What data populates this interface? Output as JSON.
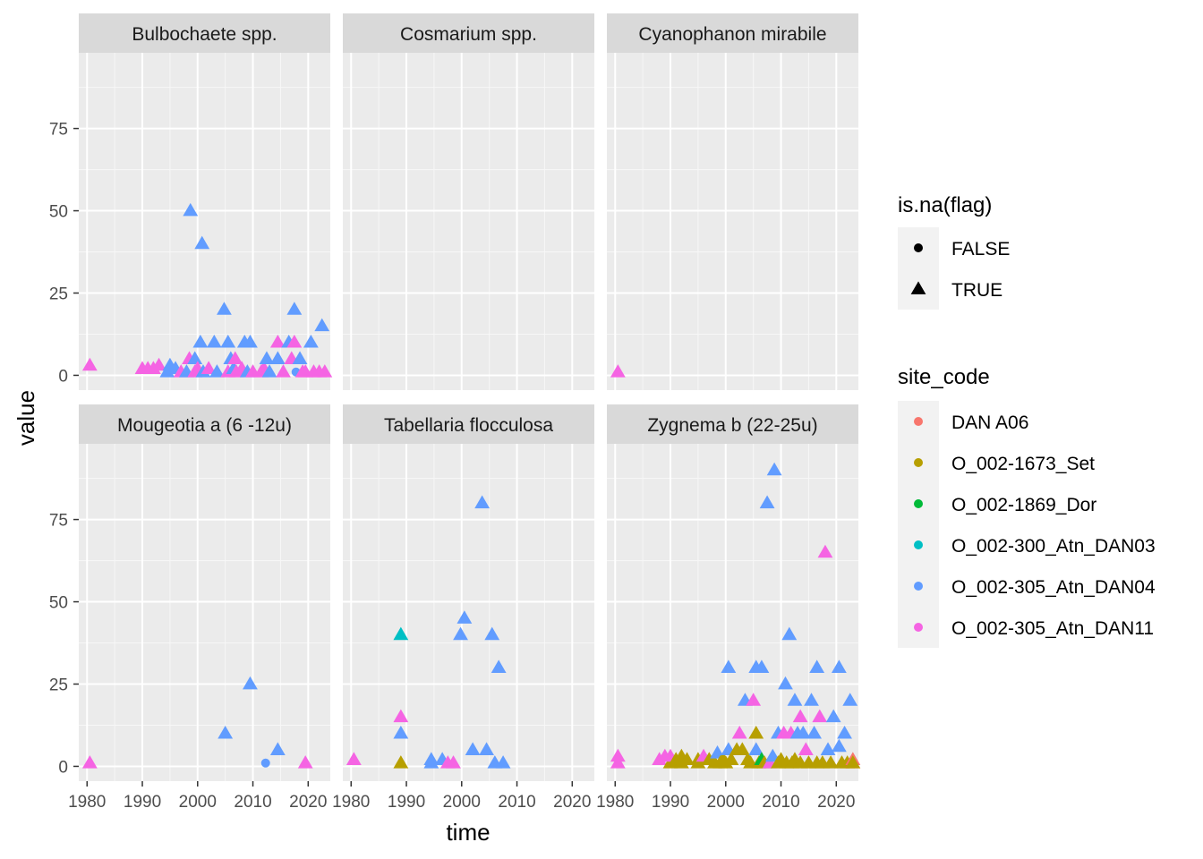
{
  "chart_data": {
    "type": "scatter",
    "facet": "wrap",
    "xlabel": "time",
    "ylabel": "value",
    "xlim": [
      1978.5,
      2024
    ],
    "ylim": [
      -4.5,
      98
    ],
    "xticks": [
      1980,
      1990,
      2000,
      2010,
      2020
    ],
    "yticks": [
      0,
      25,
      50,
      75
    ],
    "xtick_labels": [
      "1980",
      "1990",
      "2000",
      "2010",
      "2020"
    ],
    "ytick_labels": [
      "0",
      "25",
      "50",
      "75"
    ],
    "grid": true,
    "legend_position": "right",
    "shape_legend": {
      "title": "is.na(flag)",
      "entries": [
        {
          "label": "FALSE",
          "shape": "circle"
        },
        {
          "label": "TRUE",
          "shape": "triangle"
        }
      ]
    },
    "color_legend": {
      "title": "site_code",
      "entries": [
        {
          "label": "DAN A06",
          "color": "#F8766D"
        },
        {
          "label": "O_002-1673_Set",
          "color": "#B79F00"
        },
        {
          "label": "O_002-1869_Dor",
          "color": "#00BA38"
        },
        {
          "label": "O_002-300_Atn_DAN03",
          "color": "#00BFC4"
        },
        {
          "label": "O_002-305_Atn_DAN04",
          "color": "#619CFF"
        },
        {
          "label": "O_002-305_Atn_DAN11",
          "color": "#F564E3"
        }
      ]
    },
    "panels": [
      {
        "title": "Bulbochaete spp.",
        "points": [
          [
            1980.5,
            3,
            5,
            "t"
          ],
          [
            1990,
            2,
            5,
            "t"
          ],
          [
            1991,
            2,
            5,
            "t"
          ],
          [
            1992,
            2,
            5,
            "t"
          ],
          [
            1993,
            3,
            5,
            "t"
          ],
          [
            1994.5,
            1,
            4,
            "t"
          ],
          [
            1995,
            3,
            4,
            "t"
          ],
          [
            1996,
            2,
            4,
            "t"
          ],
          [
            1997,
            1,
            5,
            "t"
          ],
          [
            1998,
            1,
            4,
            "t"
          ],
          [
            1998.7,
            50,
            4,
            "t"
          ],
          [
            1998.5,
            5,
            5,
            "t"
          ],
          [
            1999.5,
            5,
            4,
            "t"
          ],
          [
            1999.5,
            1,
            5,
            "t"
          ],
          [
            2000,
            2,
            5,
            "t"
          ],
          [
            2000.5,
            10,
            4,
            "t"
          ],
          [
            2000.8,
            40,
            4,
            "t"
          ],
          [
            2001,
            1,
            4,
            "t"
          ],
          [
            2002,
            2,
            5,
            "t"
          ],
          [
            2003,
            10,
            4,
            "t"
          ],
          [
            2003.5,
            1,
            4,
            "t"
          ],
          [
            2004.8,
            20,
            4,
            "t"
          ],
          [
            2005.5,
            10,
            4,
            "t"
          ],
          [
            2005.5,
            1,
            5,
            "t"
          ],
          [
            2006,
            5,
            4,
            "t"
          ],
          [
            2006.5,
            2,
            4,
            "t"
          ],
          [
            2006.8,
            5,
            5,
            "t"
          ],
          [
            2007,
            1,
            5,
            "t"
          ],
          [
            2008,
            2,
            5,
            "t"
          ],
          [
            2008.5,
            10,
            4,
            "t"
          ],
          [
            2009,
            1,
            4,
            "t"
          ],
          [
            2009.5,
            10,
            4,
            "t"
          ],
          [
            2010,
            1,
            5,
            "t"
          ],
          [
            2011.5,
            1,
            5,
            "t"
          ],
          [
            2012,
            2,
            5,
            "t"
          ],
          [
            2012.5,
            5,
            4,
            "t"
          ],
          [
            2013,
            1,
            4,
            "t"
          ],
          [
            2014.5,
            10,
            5,
            "t"
          ],
          [
            2014.5,
            5,
            4,
            "t"
          ],
          [
            2015.5,
            1,
            5,
            "t"
          ],
          [
            2016.5,
            10,
            4,
            "t"
          ],
          [
            2017,
            5,
            5,
            "t"
          ],
          [
            2017.5,
            10,
            5,
            "t"
          ],
          [
            2017.5,
            20,
            4,
            "t"
          ],
          [
            2017.8,
            1,
            4,
            "c"
          ],
          [
            2018.5,
            5,
            4,
            "t"
          ],
          [
            2019,
            1,
            5,
            "t"
          ],
          [
            2019.5,
            1,
            5,
            "t"
          ],
          [
            2020.5,
            10,
            4,
            "t"
          ],
          [
            2021,
            1,
            5,
            "t"
          ],
          [
            2022,
            1,
            5,
            "t"
          ],
          [
            2022.5,
            15,
            4,
            "t"
          ],
          [
            2023,
            1,
            5,
            "t"
          ]
        ]
      },
      {
        "title": "Cosmarium spp.",
        "points": []
      },
      {
        "title": "Cyanophanon mirabile",
        "points": [
          [
            1980.5,
            1,
            5,
            "t"
          ]
        ]
      },
      {
        "title": "Mougeotia a (6 -12u)",
        "points": [
          [
            1980.5,
            1,
            5,
            "t"
          ],
          [
            2005,
            10,
            4,
            "t"
          ],
          [
            2009.5,
            25,
            4,
            "t"
          ],
          [
            2012.3,
            1,
            4,
            "c"
          ],
          [
            2014.5,
            5,
            4,
            "t"
          ],
          [
            2019.5,
            1,
            5,
            "t"
          ]
        ]
      },
      {
        "title": "Tabellaria flocculosa",
        "points": [
          [
            1980.5,
            2,
            5,
            "t"
          ],
          [
            1989,
            40,
            3,
            "t"
          ],
          [
            1989,
            15,
            5,
            "t"
          ],
          [
            1989,
            10,
            4,
            "t"
          ],
          [
            1989,
            1,
            1,
            "t"
          ],
          [
            1994.5,
            2,
            4,
            "t"
          ],
          [
            1994.5,
            1,
            4,
            "t"
          ],
          [
            1996.5,
            2,
            4,
            "t"
          ],
          [
            1997.5,
            1,
            5,
            "t"
          ],
          [
            1998.5,
            1,
            5,
            "t"
          ],
          [
            1999.8,
            40,
            4,
            "t"
          ],
          [
            2000.5,
            45,
            4,
            "t"
          ],
          [
            2002,
            5,
            4,
            "t"
          ],
          [
            2003.7,
            80,
            4,
            "t"
          ],
          [
            2004.5,
            5,
            4,
            "t"
          ],
          [
            2005.5,
            40,
            4,
            "t"
          ],
          [
            2006,
            1,
            4,
            "t"
          ],
          [
            2006.7,
            30,
            4,
            "t"
          ],
          [
            2007.5,
            1,
            4,
            "t"
          ]
        ]
      },
      {
        "title": "Zygnema b (22-25u)",
        "points": [
          [
            1980.5,
            3,
            5,
            "t"
          ],
          [
            1980.5,
            1,
            5,
            "t"
          ],
          [
            1988,
            2,
            5,
            "t"
          ],
          [
            1989,
            3,
            5,
            "t"
          ],
          [
            1990,
            1,
            1,
            "t"
          ],
          [
            1990,
            3,
            5,
            "t"
          ],
          [
            1991,
            2,
            1,
            "t"
          ],
          [
            1992,
            3,
            1,
            "t"
          ],
          [
            1992,
            1,
            1,
            "t"
          ],
          [
            1993,
            2,
            1,
            "t"
          ],
          [
            1995,
            2,
            1,
            "t"
          ],
          [
            1995,
            1,
            1,
            "t"
          ],
          [
            1996,
            3,
            5,
            "t"
          ],
          [
            1997,
            2,
            1,
            "t"
          ],
          [
            1998,
            1,
            1,
            "t"
          ],
          [
            1998.5,
            4,
            4,
            "t"
          ],
          [
            1999,
            1,
            1,
            "t"
          ],
          [
            1999.5,
            2,
            1,
            "t"
          ],
          [
            2000,
            1,
            1,
            "t"
          ],
          [
            2000.5,
            30,
            4,
            "t"
          ],
          [
            2000.5,
            5,
            4,
            "t"
          ],
          [
            2001,
            2,
            1,
            "t"
          ],
          [
            2002,
            5,
            1,
            "t"
          ],
          [
            2002.5,
            10,
            5,
            "t"
          ],
          [
            2003,
            5,
            1,
            "t"
          ],
          [
            2003.5,
            20,
            4,
            "t"
          ],
          [
            2004,
            2,
            1,
            "t"
          ],
          [
            2004.5,
            1,
            1,
            "t"
          ],
          [
            2005,
            20,
            5,
            "t"
          ],
          [
            2005.5,
            30,
            4,
            "t"
          ],
          [
            2005.5,
            10,
            1,
            "t"
          ],
          [
            2005.5,
            5,
            4,
            "t"
          ],
          [
            2006,
            1,
            1,
            "t"
          ],
          [
            2006.5,
            30,
            4,
            "t"
          ],
          [
            2006.5,
            2,
            2,
            "t"
          ],
          [
            2007,
            1,
            1,
            "t"
          ],
          [
            2007.5,
            80,
            4,
            "t"
          ],
          [
            2008,
            1,
            5,
            "t"
          ],
          [
            2008.5,
            3,
            4,
            "t"
          ],
          [
            2008.8,
            90,
            4,
            "t"
          ],
          [
            2009.5,
            10,
            4,
            "t"
          ],
          [
            2009.5,
            1,
            1,
            "t"
          ],
          [
            2010,
            2,
            1,
            "t"
          ],
          [
            2010.5,
            10,
            5,
            "t"
          ],
          [
            2010.8,
            25,
            4,
            "t"
          ],
          [
            2011,
            1,
            1,
            "t"
          ],
          [
            2011.5,
            40,
            4,
            "t"
          ],
          [
            2011.8,
            10,
            5,
            "t"
          ],
          [
            2012,
            1,
            1,
            "t"
          ],
          [
            2012.5,
            20,
            4,
            "t"
          ],
          [
            2012.5,
            2,
            1,
            "t"
          ],
          [
            2013,
            10,
            4,
            "t"
          ],
          [
            2013.5,
            15,
            5,
            "t"
          ],
          [
            2013.5,
            1,
            1,
            "t"
          ],
          [
            2014,
            10,
            4,
            "t"
          ],
          [
            2014.5,
            5,
            5,
            "t"
          ],
          [
            2015,
            1,
            1,
            "t"
          ],
          [
            2015.5,
            20,
            4,
            "t"
          ],
          [
            2016,
            10,
            4,
            "t"
          ],
          [
            2016.5,
            30,
            4,
            "t"
          ],
          [
            2016.5,
            1,
            1,
            "t"
          ],
          [
            2017,
            15,
            5,
            "t"
          ],
          [
            2017.5,
            1,
            1,
            "t"
          ],
          [
            2018,
            65,
            5,
            "t"
          ],
          [
            2018.5,
            5,
            4,
            "t"
          ],
          [
            2019,
            1,
            1,
            "t"
          ],
          [
            2019.5,
            15,
            4,
            "t"
          ],
          [
            2020.5,
            30,
            4,
            "t"
          ],
          [
            2020.5,
            6,
            4,
            "t"
          ],
          [
            2021,
            1,
            1,
            "t"
          ],
          [
            2021.5,
            10,
            4,
            "t"
          ],
          [
            2022,
            1,
            1,
            "t"
          ],
          [
            2022.5,
            20,
            4,
            "t"
          ],
          [
            2023,
            2,
            0,
            "t"
          ],
          [
            2023,
            1,
            0,
            "t"
          ],
          [
            2023,
            1,
            1,
            "t"
          ]
        ]
      }
    ]
  }
}
